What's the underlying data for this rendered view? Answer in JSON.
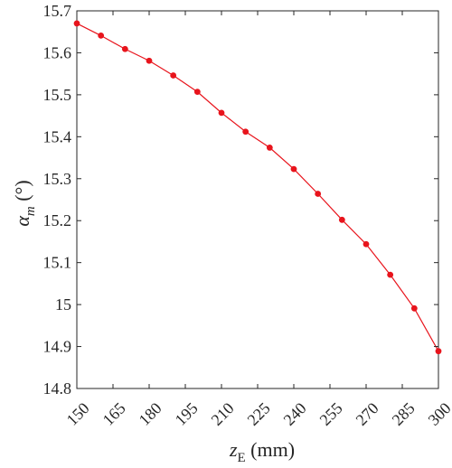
{
  "chart_data": {
    "type": "line",
    "xlabel": {
      "var": "z",
      "sub": "E",
      "unit": " (mm)"
    },
    "ylabel": {
      "var": "α",
      "sub": "m",
      "unit": " (°)"
    },
    "xlim": [
      150,
      300
    ],
    "ylim": [
      14.8,
      15.7
    ],
    "xticks": [
      150,
      165,
      180,
      195,
      210,
      225,
      240,
      255,
      270,
      285,
      300
    ],
    "yticks": [
      14.8,
      14.9,
      15,
      15.1,
      15.2,
      15.3,
      15.4,
      15.5,
      15.6,
      15.7
    ],
    "grid": false,
    "series": [
      {
        "color": "#e8141c",
        "x": [
          150,
          160,
          170,
          180,
          190,
          200,
          210,
          220,
          230,
          240,
          250,
          260,
          270,
          280,
          290,
          300
        ],
        "y": [
          15.67,
          15.641,
          15.609,
          15.581,
          15.546,
          15.507,
          15.457,
          15.412,
          15.374,
          15.323,
          15.264,
          15.202,
          15.144,
          15.071,
          14.991,
          14.889
        ]
      }
    ]
  }
}
